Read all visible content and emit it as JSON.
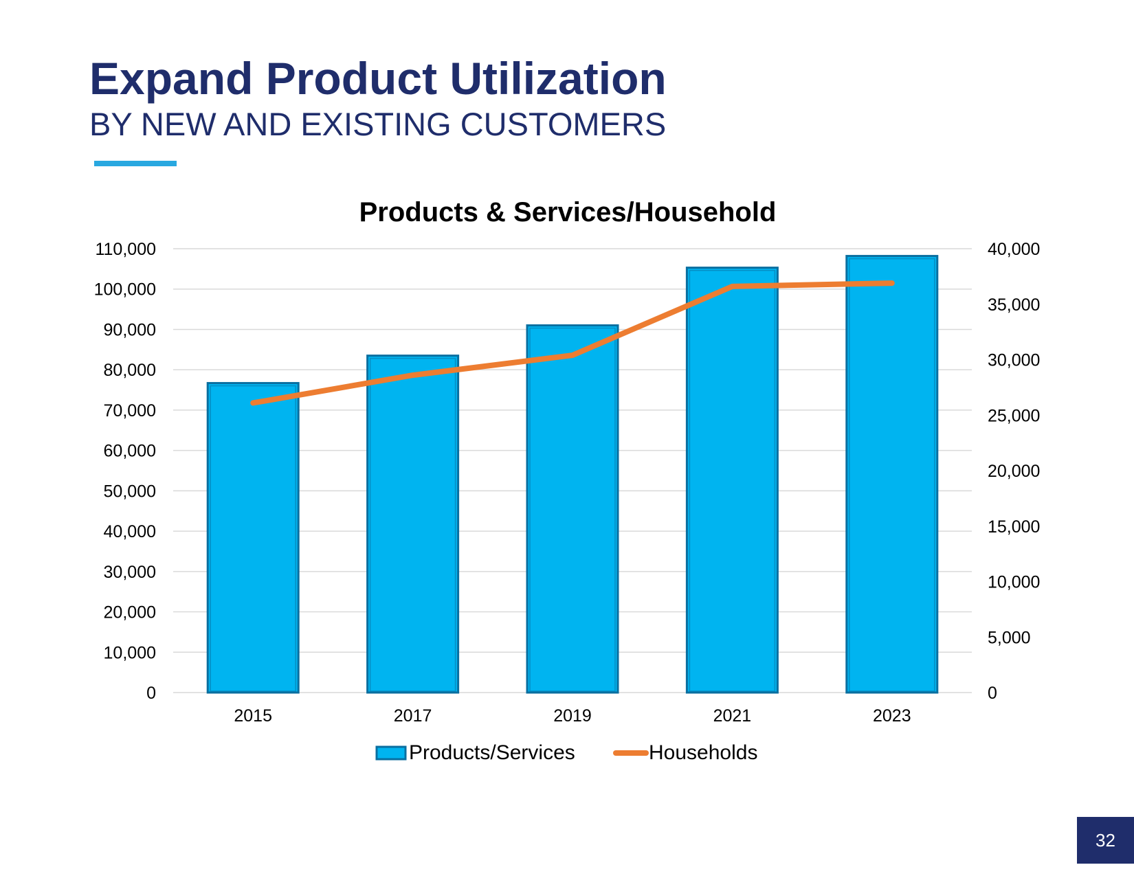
{
  "slide": {
    "title": "Expand Product Utilization",
    "subtitle": "BY NEW AND EXISTING CUSTOMERS",
    "page_number": "32"
  },
  "colors": {
    "title": "#1f2d6b",
    "accent": "#29a8e0",
    "bar": "#00b4f0",
    "bar_edge": "#0a6fa0",
    "line": "#ed7d31",
    "grid": "#d9d9d9",
    "page_badge": "#1f2d6b"
  },
  "chart_data": {
    "type": "bar",
    "title": "Products & Services/Household",
    "categories": [
      "2015",
      "2017",
      "2019",
      "2021",
      "2023"
    ],
    "series": [
      {
        "name": "Products/Services",
        "type": "bar",
        "axis": "left",
        "values": [
          76700,
          83500,
          91000,
          105300,
          108200
        ]
      },
      {
        "name": "Households",
        "type": "line",
        "axis": "right",
        "values": [
          26100,
          28600,
          30400,
          36600,
          36900
        ]
      }
    ],
    "y_left": {
      "min": 0,
      "max": 110000,
      "step": 10000,
      "ticks": [
        "0",
        "10,000",
        "20,000",
        "30,000",
        "40,000",
        "50,000",
        "60,000",
        "70,000",
        "80,000",
        "90,000",
        "100,000",
        "110,000"
      ]
    },
    "y_right": {
      "min": 0,
      "max": 40000,
      "step": 5000,
      "ticks": [
        "0",
        "5,000",
        "10,000",
        "15,000",
        "20,000",
        "25,000",
        "30,000",
        "35,000",
        "40,000"
      ]
    },
    "grid": true,
    "legend": "bottom-center",
    "xlabel": "",
    "ylabel": ""
  }
}
